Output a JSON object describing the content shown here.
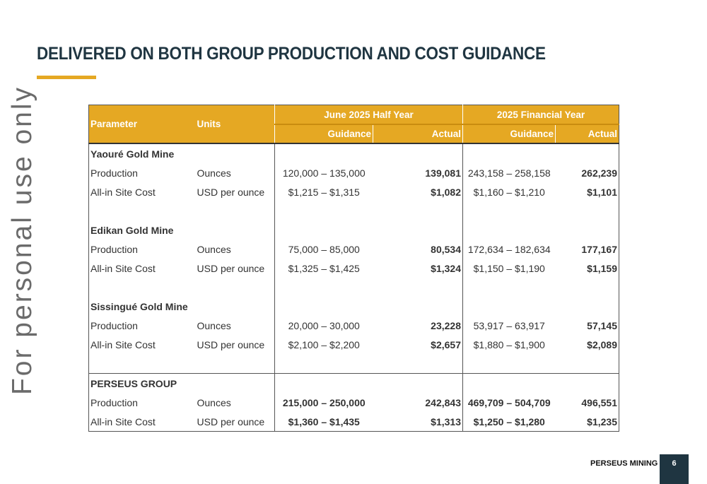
{
  "title": "DELIVERED ON BOTH GROUP PRODUCTION AND COST GUIDANCE",
  "watermark": "For personal use only",
  "table": {
    "headers": {
      "parameter": "Parameter",
      "units": "Units",
      "half_year": "June 2025 Half Year",
      "financial_year": "2025 Financial Year",
      "guidance": "Guidance",
      "actual": "Actual"
    },
    "groups": [
      {
        "name": "Yaouré Gold Mine",
        "rows": [
          {
            "param": "Production",
            "units": "Ounces",
            "hy_guidance": "120,000 – 135,000",
            "hy_actual": "139,081",
            "fy_guidance": "243,158 – 258,158",
            "fy_actual": "262,239"
          },
          {
            "param": "All-in Site Cost",
            "units": "USD per ounce",
            "hy_guidance": "$1,215 – $1,315",
            "hy_actual": "$1,082",
            "fy_guidance": "$1,160 – $1,210",
            "fy_actual": "$1,101"
          }
        ]
      },
      {
        "name": "Edikan Gold Mine",
        "rows": [
          {
            "param": "Production",
            "units": "Ounces",
            "hy_guidance": "75,000 – 85,000",
            "hy_actual": "80,534",
            "fy_guidance": "172,634 – 182,634",
            "fy_actual": "177,167"
          },
          {
            "param": "All-in Site Cost",
            "units": "USD per ounce",
            "hy_guidance": "$1,325 – $1,425",
            "hy_actual": "$1,324",
            "fy_guidance": "$1,150 – $1,190",
            "fy_actual": "$1,159"
          }
        ]
      },
      {
        "name": "Sissingué Gold Mine",
        "rows": [
          {
            "param": "Production",
            "units": "Ounces",
            "hy_guidance": "20,000 – 30,000",
            "hy_actual": "23,228",
            "fy_guidance": "53,917 – 63,917",
            "fy_actual": "57,145"
          },
          {
            "param": "All-in Site Cost",
            "units": "USD per ounce",
            "hy_guidance": "$2,100 – $2,200",
            "hy_actual": "$2,657",
            "fy_guidance": "$1,880 – $1,900",
            "fy_actual": "$2,089"
          }
        ]
      },
      {
        "name": "PERSEUS GROUP",
        "rows": [
          {
            "param": "Production",
            "units": "Ounces",
            "hy_guidance": "215,000 – 250,000",
            "hy_actual": "242,843",
            "fy_guidance": "469,709 – 504,709",
            "fy_actual": "496,551"
          },
          {
            "param": "All-in Site Cost",
            "units": "USD per ounce",
            "hy_guidance": "$1,360 – $1,435",
            "hy_actual": "$1,313",
            "fy_guidance": "$1,250 – $1,280",
            "fy_actual": "$1,235"
          }
        ]
      }
    ]
  },
  "footer": {
    "company": "PERSEUS MINING",
    "page": "6"
  },
  "colors": {
    "accent": "#e5a823",
    "navy": "#1f3541"
  }
}
